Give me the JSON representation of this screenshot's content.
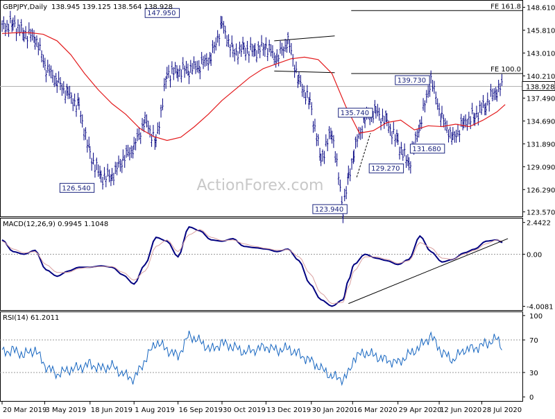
{
  "chart_data": [
    {
      "type": "line",
      "title": "GBPJPY,Daily",
      "ohlc_header": "138.945 139.125 138.564 138.928",
      "ylim": [
        123.0,
        149.5
      ],
      "y_ticks": [
        "148.610",
        "145.810",
        "143.010",
        "140.210",
        "137.490",
        "134.690",
        "131.890",
        "129.090",
        "126.290",
        "123.570"
      ],
      "current_price_label": "138.928",
      "current_price": 138.928,
      "watermark": "ActionForex.com",
      "x_tick_labels": [
        "20 Mar 2019",
        "3 May 2019",
        "18 Jun 2019",
        "1 Aug 2019",
        "16 Sep 2019",
        "30 Oct 2019",
        "13 Dec 2019",
        "30 Jan 2020",
        "16 Mar 2020",
        "29 Apr 2020",
        "12 Jun 2020",
        "28 Jul 2020"
      ],
      "x_index_range": [
        0,
        375
      ],
      "x_tick_index": [
        0,
        31,
        64,
        96,
        128,
        160,
        192,
        225,
        255,
        288,
        318,
        349
      ],
      "series": [
        {
          "style": "bars",
          "color": "#000080",
          "x": [
            0,
            8,
            16,
            24,
            32,
            40,
            48,
            56,
            64,
            72,
            80,
            88,
            96,
            104,
            112,
            120,
            128,
            136,
            144,
            152,
            160,
            168,
            176,
            184,
            192,
            200,
            208,
            216,
            224,
            232,
            240,
            248,
            252,
            256,
            264,
            272,
            280,
            288,
            296,
            304,
            312,
            320,
            328,
            336,
            344,
            352,
            360,
            364
          ],
          "values": [
            146.2,
            146.6,
            145.4,
            145.0,
            141.2,
            139.5,
            138.0,
            136.3,
            130.5,
            127.8,
            127.9,
            130.0,
            131.5,
            134.8,
            132.0,
            140.5,
            140.8,
            141.0,
            141.5,
            142.5,
            146.5,
            143.0,
            143.5,
            143.2,
            143.8,
            142.3,
            144.5,
            139.5,
            137.0,
            130.0,
            133.5,
            124.0,
            127.5,
            131.0,
            135.0,
            135.8,
            134.5,
            132.0,
            129.3,
            134.2,
            139.7,
            135.0,
            132.5,
            134.5,
            135.3,
            136.8,
            138.5,
            138.9
          ]
        },
        {
          "style": "moving-average",
          "color": "#e31a1c",
          "x": [
            0,
            10,
            20,
            30,
            40,
            50,
            60,
            70,
            80,
            90,
            100,
            110,
            120,
            130,
            140,
            150,
            160,
            170,
            180,
            190,
            200,
            210,
            220,
            230,
            240,
            250,
            260,
            270,
            280,
            290,
            300,
            310,
            320,
            330,
            340,
            350,
            360,
            366
          ],
          "values": [
            145.4,
            145.5,
            145.5,
            145.3,
            144.5,
            142.8,
            140.5,
            138.5,
            136.8,
            135.5,
            133.8,
            132.8,
            132.3,
            132.7,
            134.0,
            135.5,
            137.2,
            138.6,
            140.0,
            141.1,
            141.7,
            142.3,
            142.5,
            142.2,
            140.5,
            136.5,
            133.2,
            133.5,
            134.5,
            134.8,
            133.6,
            134.1,
            134.0,
            134.3,
            134.0,
            134.8,
            135.8,
            136.7
          ]
        }
      ],
      "annotations": [
        {
          "text": "147.950",
          "x": 130,
          "y": 147.95
        },
        {
          "text": "126.540",
          "x": 68,
          "y": 126.54
        },
        {
          "text": "123.940",
          "x": 252,
          "y": 123.94
        },
        {
          "text": "135.740",
          "x": 262,
          "y": 135.74
        },
        {
          "text": "129.270",
          "x": 290,
          "y": 129.27
        },
        {
          "text": "131.680",
          "x": 300,
          "y": 131.68
        },
        {
          "text": "139.730",
          "x": 312,
          "y": 139.73
        }
      ],
      "fib_levels": [
        {
          "text": "FE 161.8",
          "value": 148.2,
          "x_start": 254
        },
        {
          "text": "FE 100.0",
          "value": 140.5,
          "x_start": 254
        }
      ],
      "channel_lines": [
        {
          "x1": 198,
          "y1": 144.5,
          "x2": 242,
          "y2": 145.1
        },
        {
          "x1": 198,
          "y1": 140.8,
          "x2": 242,
          "y2": 140.6
        },
        {
          "x1": 258,
          "y1": 127.8,
          "x2": 268,
          "y2": 133.2
        }
      ]
    },
    {
      "type": "line",
      "title": "MACD(12,26,9) 0.9945 1.1048",
      "ylim": [
        -4.3,
        2.8
      ],
      "y_ticks": [
        "2.4422",
        "0.00",
        "-4.0081"
      ],
      "x_index_range": [
        0,
        375
      ],
      "series": [
        {
          "style": "main",
          "color": "#000080",
          "x": [
            0,
            8,
            16,
            24,
            32,
            40,
            48,
            56,
            64,
            72,
            80,
            88,
            96,
            104,
            112,
            120,
            128,
            136,
            144,
            152,
            160,
            168,
            176,
            184,
            192,
            200,
            208,
            216,
            224,
            232,
            240,
            248,
            252,
            256,
            264,
            272,
            280,
            288,
            296,
            304,
            312,
            320,
            328,
            336,
            344,
            352,
            360,
            364
          ],
          "values": [
            1.1,
            0.2,
            0.0,
            0.3,
            -1.2,
            -1.7,
            -1.3,
            -1.0,
            -1.0,
            -0.9,
            -1.0,
            -1.6,
            -2.3,
            -0.8,
            1.3,
            1.0,
            -0.2,
            2.1,
            1.8,
            1.1,
            1.0,
            1.2,
            0.6,
            0.5,
            0.4,
            0.2,
            0.4,
            -0.5,
            -2.3,
            -3.5,
            -4.0,
            -3.5,
            -2.0,
            -0.8,
            0.0,
            -0.3,
            -0.5,
            -0.8,
            -0.4,
            1.4,
            0.2,
            -0.6,
            -0.4,
            0.1,
            0.4,
            1.0,
            1.1,
            0.9
          ]
        },
        {
          "style": "signal",
          "color": "#d9a0a0",
          "x": [
            0,
            8,
            16,
            24,
            32,
            40,
            48,
            56,
            64,
            72,
            80,
            88,
            96,
            104,
            112,
            120,
            128,
            136,
            144,
            152,
            160,
            168,
            176,
            184,
            192,
            200,
            208,
            216,
            224,
            232,
            240,
            248,
            252,
            256,
            264,
            272,
            280,
            288,
            296,
            304,
            312,
            320,
            328,
            336,
            344,
            352,
            360,
            364
          ],
          "values": [
            1.0,
            0.4,
            0.1,
            0.2,
            -0.8,
            -1.4,
            -1.4,
            -1.1,
            -1.0,
            -0.95,
            -0.95,
            -1.4,
            -2.0,
            -1.3,
            0.6,
            1.1,
            0.2,
            1.5,
            1.9,
            1.3,
            1.05,
            1.1,
            0.8,
            0.6,
            0.45,
            0.3,
            0.35,
            -0.2,
            -1.5,
            -3.0,
            -3.8,
            -3.7,
            -2.5,
            -1.3,
            -0.2,
            -0.2,
            -0.4,
            -0.7,
            -0.5,
            0.9,
            0.5,
            -0.3,
            -0.4,
            0.0,
            0.3,
            0.8,
            1.1,
            1.0
          ]
        }
      ],
      "trendlines": [
        {
          "x1": 252,
          "y1": -3.8,
          "x2": 368,
          "y2": 1.2
        }
      ]
    },
    {
      "type": "line",
      "title": "RSI(14) 61.2011",
      "ylim": [
        0,
        100
      ],
      "y_ticks": [
        "100",
        "70",
        "30",
        "0"
      ],
      "levels": [
        70,
        30
      ],
      "x_index_range": [
        0,
        375
      ],
      "series": [
        {
          "style": "main",
          "color": "#1565c0",
          "x": [
            0,
            8,
            16,
            24,
            32,
            40,
            48,
            56,
            64,
            72,
            80,
            88,
            96,
            104,
            112,
            120,
            128,
            136,
            144,
            152,
            160,
            168,
            176,
            184,
            192,
            200,
            208,
            216,
            224,
            232,
            240,
            248,
            252,
            256,
            264,
            272,
            280,
            288,
            296,
            304,
            312,
            320,
            328,
            336,
            344,
            352,
            360,
            364
          ],
          "values": [
            55,
            57,
            52,
            58,
            37,
            28,
            33,
            36,
            40,
            35,
            38,
            28,
            22,
            45,
            68,
            58,
            50,
            76,
            68,
            58,
            66,
            62,
            55,
            58,
            62,
            57,
            60,
            52,
            45,
            35,
            25,
            22,
            28,
            48,
            55,
            50,
            45,
            42,
            52,
            62,
            75,
            55,
            45,
            58,
            60,
            65,
            72,
            61
          ]
        }
      ]
    }
  ]
}
